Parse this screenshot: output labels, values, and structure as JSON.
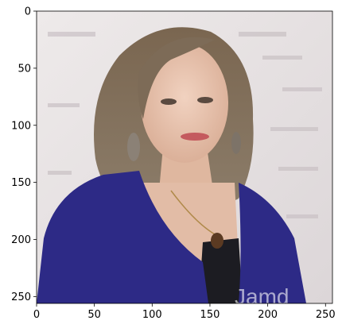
{
  "image": {
    "subject": "portrait-photo",
    "watermark": "Jamd",
    "colors": {
      "backdrop": "#e7e2e2",
      "cardigan": "#2d2a86",
      "hair": "#6f5d48",
      "skin": "#e8c4ae",
      "top": "#1c1c22"
    }
  },
  "axes": {
    "x_ticks": [
      "0",
      "50",
      "100",
      "150",
      "200",
      "250"
    ],
    "y_ticks": [
      "0",
      "50",
      "100",
      "150",
      "200",
      "250"
    ],
    "x_range": [
      0,
      256
    ],
    "y_range": [
      0,
      256
    ],
    "y_inverted": true
  }
}
